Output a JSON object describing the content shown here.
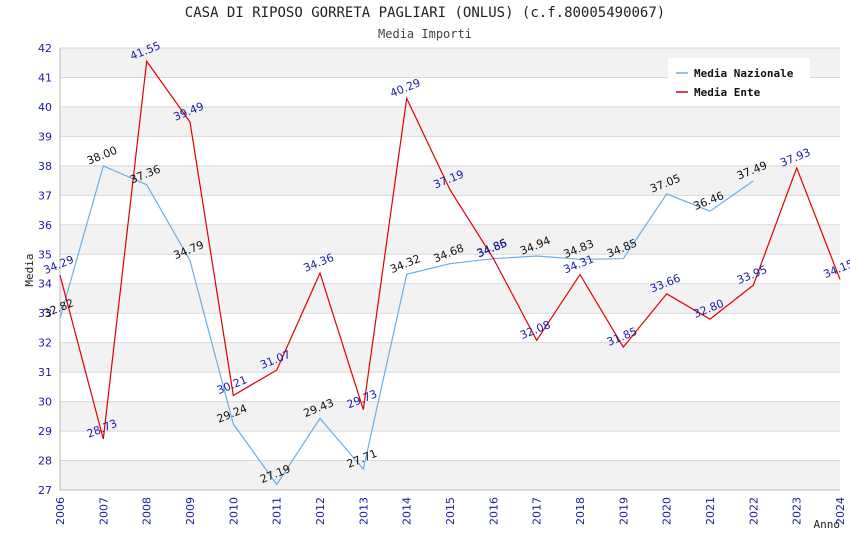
{
  "title": "CASA DI RIPOSO GORRETA PAGLIARI (ONLUS) (c.f.80005490067)",
  "subtitle": "Media Importi",
  "chart_data": {
    "type": "line",
    "x": [
      2006,
      2007,
      2008,
      2009,
      2010,
      2011,
      2012,
      2013,
      2014,
      2015,
      2016,
      2017,
      2018,
      2019,
      2020,
      2021,
      2022,
      2023,
      2024
    ],
    "xlabel": "Anno",
    "ylabel": "Media",
    "ylim": [
      27,
      42
    ],
    "yticks": [
      27,
      28,
      29,
      30,
      31,
      32,
      33,
      34,
      35,
      36,
      37,
      38,
      39,
      40,
      41,
      42
    ],
    "grid": "horizontal alternating bands",
    "legend_position": "top-right",
    "series": [
      {
        "name": "Media Nazionale",
        "color": "#6aaee8",
        "values": [
          32.82,
          38.0,
          37.36,
          34.79,
          29.24,
          27.19,
          29.43,
          27.71,
          34.32,
          34.68,
          34.85,
          34.94,
          34.83,
          34.85,
          37.05,
          36.46,
          37.49,
          null,
          null
        ],
        "labels": [
          "32.82",
          "38.00",
          "37.36",
          "34.79",
          "29.24",
          "27.19",
          "29.43",
          "27.71",
          "34.32",
          "34.68",
          "34.85",
          "34.94",
          "34.83",
          "34.85",
          "37.05",
          "36.46",
          "37.49",
          "",
          ""
        ]
      },
      {
        "name": "Media Ente",
        "color": "#e00000",
        "values": [
          34.29,
          28.73,
          41.55,
          39.49,
          30.21,
          31.07,
          34.36,
          29.73,
          40.29,
          37.19,
          34.86,
          32.08,
          34.31,
          31.85,
          33.66,
          32.8,
          33.95,
          37.93,
          34.15
        ],
        "labels": [
          "34.29",
          "28.73",
          "41.55",
          "39.49",
          "30.21",
          "31.07",
          "34.36",
          "29.73",
          "40.29",
          "37.19",
          "34.86",
          "32.08",
          "34.31",
          "31.85",
          "33.66",
          "32.80",
          "33.95",
          "37.93",
          "34.15"
        ]
      }
    ]
  }
}
